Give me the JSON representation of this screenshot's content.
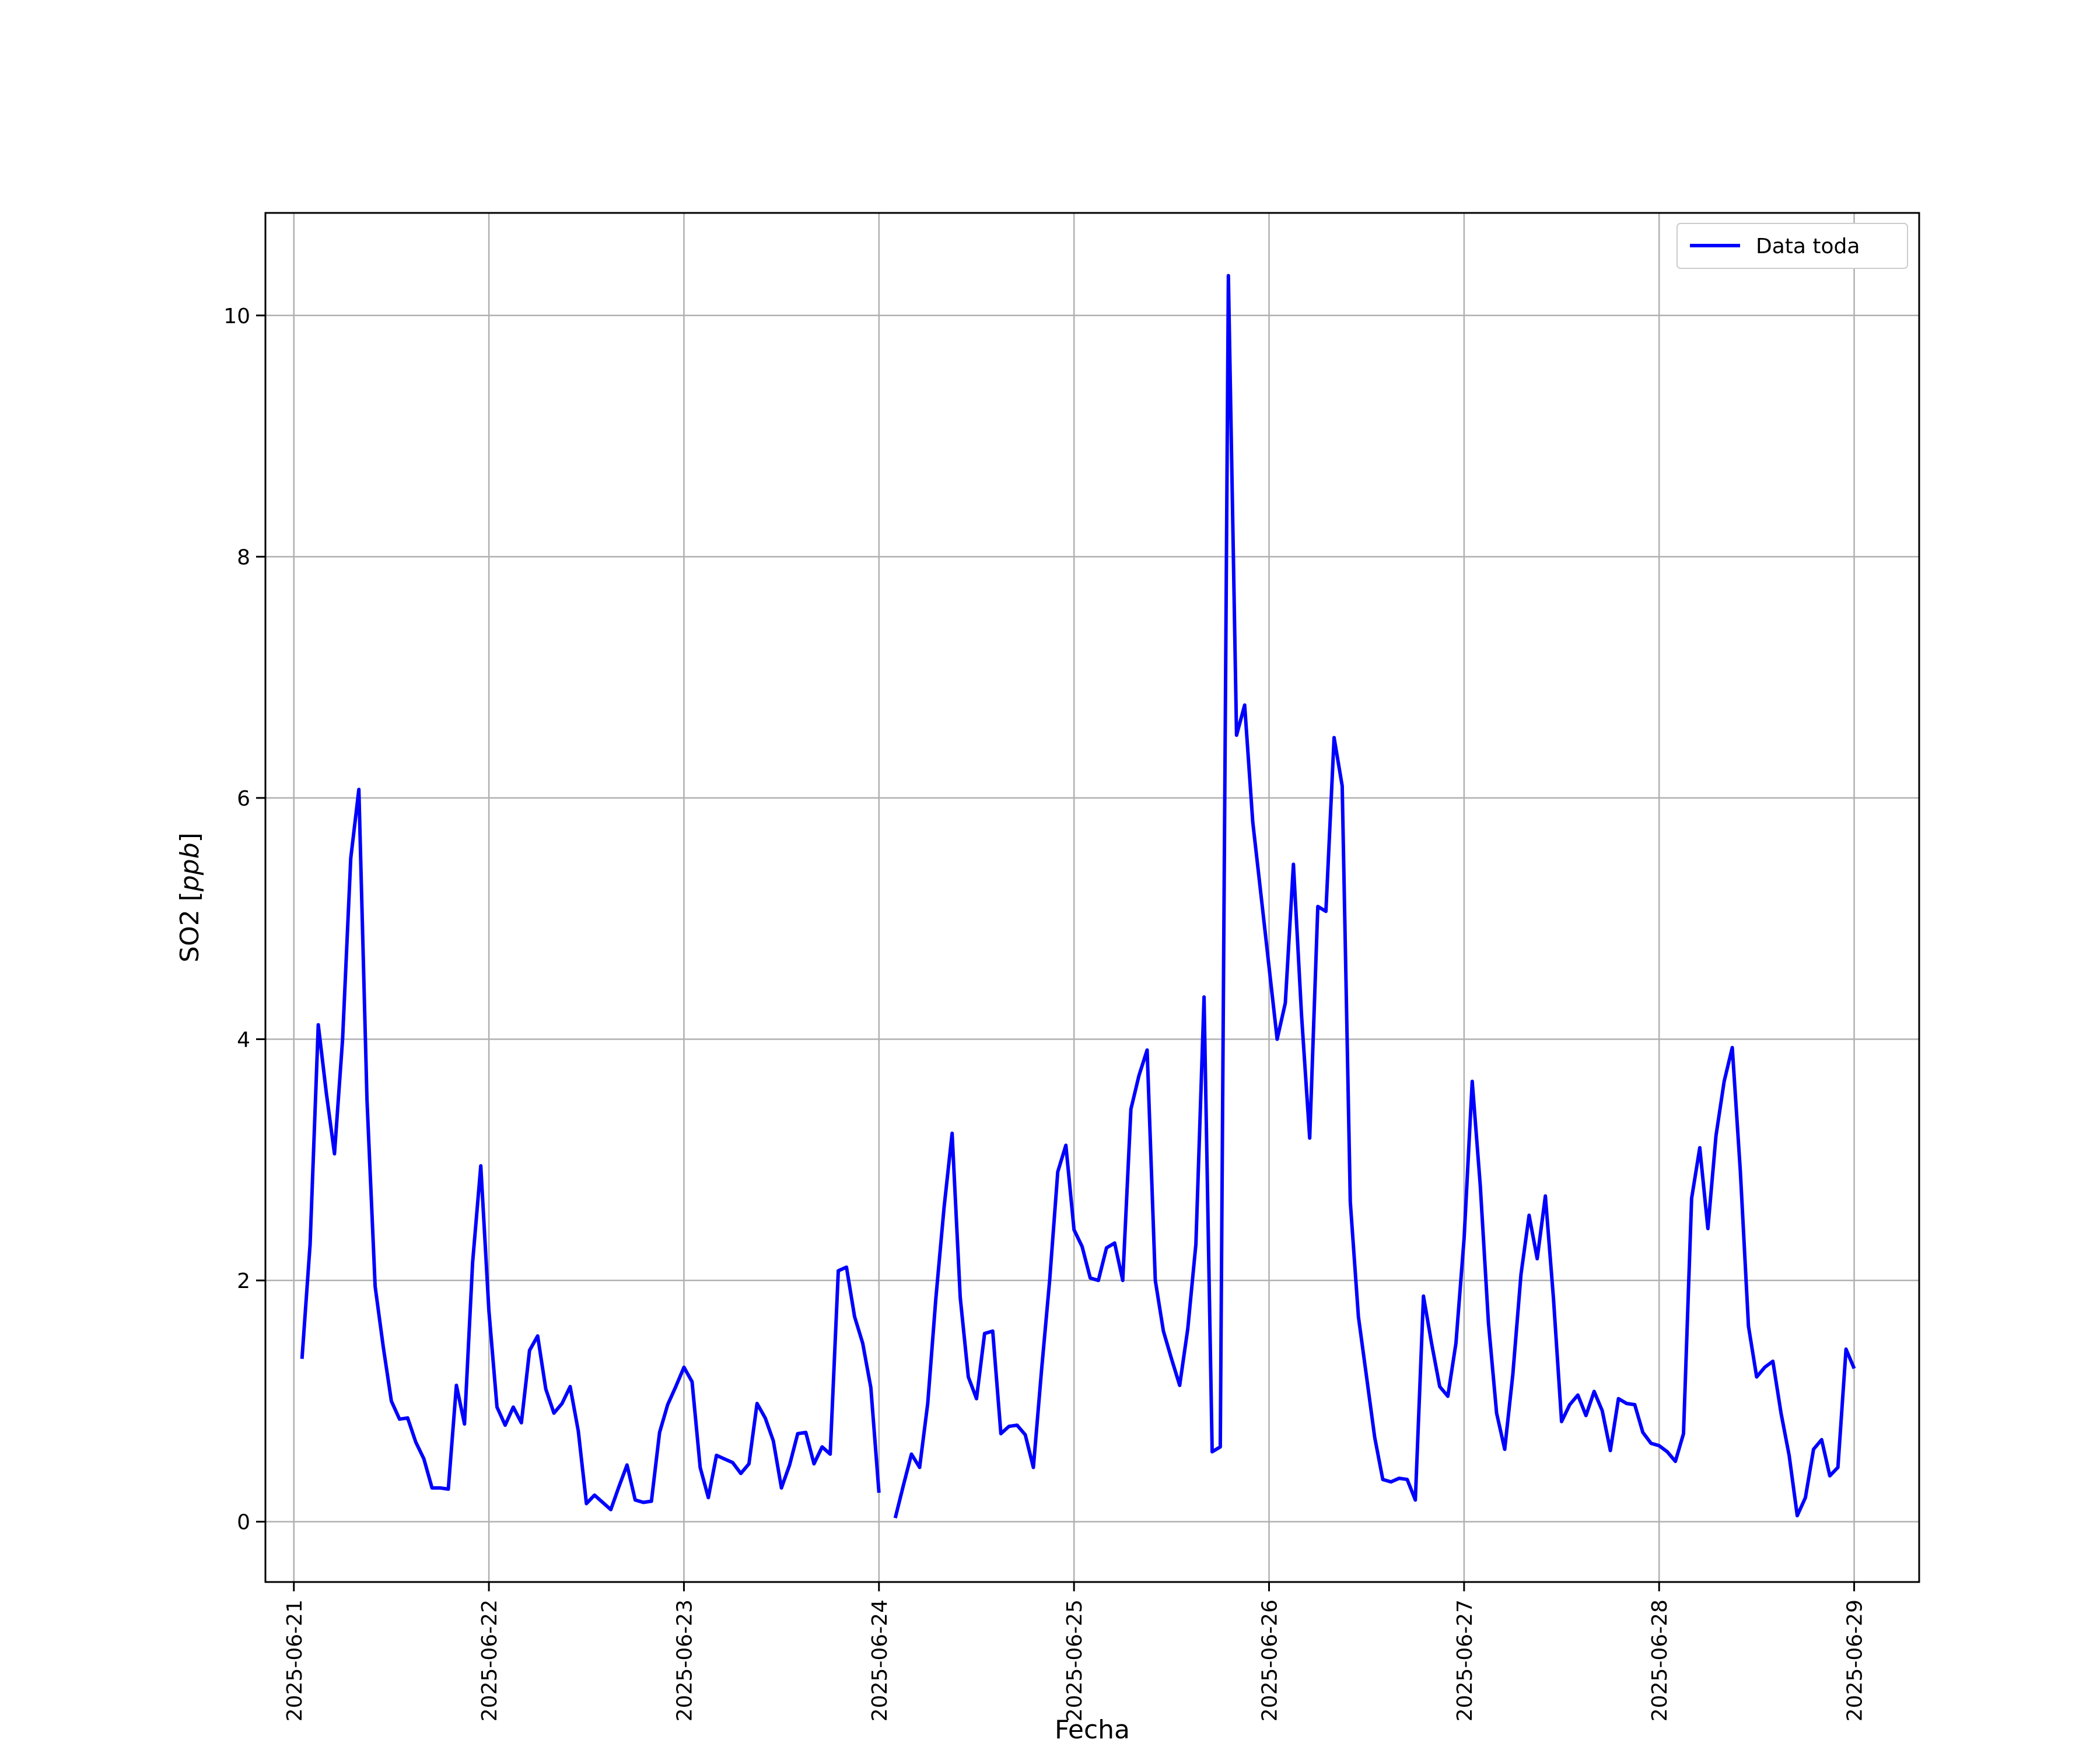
{
  "chart_data": {
    "type": "line",
    "xlabel": "Fecha",
    "ylabel_text": "SO2 [",
    "ylabel_unit": "ppb",
    "ylabel_close": "]",
    "ylim": [
      -0.5,
      10.85
    ],
    "xlim": [
      "2025-06-20 20:30",
      "2025-06-29 08:00"
    ],
    "grid": true,
    "legend_position": "top-right",
    "x_ticks": [
      {
        "value": "2025-06-21",
        "label": "2025-06-21"
      },
      {
        "value": "2025-06-22",
        "label": "2025-06-22"
      },
      {
        "value": "2025-06-23",
        "label": "2025-06-23"
      },
      {
        "value": "2025-06-24",
        "label": "2025-06-24"
      },
      {
        "value": "2025-06-25",
        "label": "2025-06-25"
      },
      {
        "value": "2025-06-26",
        "label": "2025-06-26"
      },
      {
        "value": "2025-06-27",
        "label": "2025-06-27"
      },
      {
        "value": "2025-06-28",
        "label": "2025-06-28"
      },
      {
        "value": "2025-06-29",
        "label": "2025-06-29"
      }
    ],
    "y_ticks": [
      {
        "value": 0,
        "label": "0"
      },
      {
        "value": 2,
        "label": "2"
      },
      {
        "value": 4,
        "label": "4"
      },
      {
        "value": 6,
        "label": "6"
      },
      {
        "value": 8,
        "label": "8"
      },
      {
        "value": 10,
        "label": "10"
      }
    ],
    "series": [
      {
        "name": "Data toda",
        "color": "#0000ff",
        "x": [
          "2025-06-21 01:00",
          "2025-06-21 02:00",
          "2025-06-21 03:00",
          "2025-06-21 04:00",
          "2025-06-21 05:00",
          "2025-06-21 06:00",
          "2025-06-21 07:00",
          "2025-06-21 08:00",
          "2025-06-21 09:00",
          "2025-06-21 10:00",
          "2025-06-21 11:00",
          "2025-06-21 12:00",
          "2025-06-21 13:00",
          "2025-06-21 14:00",
          "2025-06-21 15:00",
          "2025-06-21 16:00",
          "2025-06-21 17:00",
          "2025-06-21 18:00",
          "2025-06-21 19:00",
          "2025-06-21 20:00",
          "2025-06-21 21:00",
          "2025-06-21 22:00",
          "2025-06-21 23:00",
          "2025-06-22 00:00",
          "2025-06-22 01:00",
          "2025-06-22 02:00",
          "2025-06-22 03:00",
          "2025-06-22 04:00",
          "2025-06-22 05:00",
          "2025-06-22 06:00",
          "2025-06-22 07:00",
          "2025-06-22 08:00",
          "2025-06-22 09:00",
          "2025-06-22 10:00",
          "2025-06-22 11:00",
          "2025-06-22 12:00",
          "2025-06-22 13:00",
          "2025-06-22 14:00",
          "2025-06-22 15:00",
          "2025-06-22 16:00",
          "2025-06-22 17:00",
          "2025-06-22 18:00",
          "2025-06-22 19:00",
          "2025-06-22 20:00",
          "2025-06-22 21:00",
          "2025-06-22 22:00",
          "2025-06-22 23:00",
          "2025-06-23 00:00",
          "2025-06-23 01:00",
          "2025-06-23 02:00",
          "2025-06-23 03:00",
          "2025-06-23 04:00",
          "2025-06-23 05:00",
          "2025-06-23 06:00",
          "2025-06-23 07:00",
          "2025-06-23 08:00",
          "2025-06-23 09:00",
          "2025-06-23 10:00",
          "2025-06-23 11:00",
          "2025-06-23 12:00",
          "2025-06-23 13:00",
          "2025-06-23 14:00",
          "2025-06-23 15:00",
          "2025-06-23 16:00",
          "2025-06-23 17:00",
          "2025-06-23 18:00",
          "2025-06-23 19:00",
          "2025-06-23 20:00",
          "2025-06-23 21:00",
          "2025-06-23 22:00",
          "2025-06-23 23:00",
          "2025-06-24 00:00",
          null,
          "2025-06-24 02:00",
          "2025-06-24 03:00",
          "2025-06-24 04:00",
          "2025-06-24 05:00",
          "2025-06-24 06:00",
          "2025-06-24 07:00",
          "2025-06-24 08:00",
          "2025-06-24 09:00",
          "2025-06-24 10:00",
          "2025-06-24 11:00",
          "2025-06-24 12:00",
          "2025-06-24 13:00",
          "2025-06-24 14:00",
          "2025-06-24 15:00",
          "2025-06-24 16:00",
          "2025-06-24 17:00",
          "2025-06-24 18:00",
          "2025-06-24 19:00",
          "2025-06-24 20:00",
          "2025-06-24 21:00",
          "2025-06-24 22:00",
          "2025-06-24 23:00",
          "2025-06-25 00:00",
          "2025-06-25 01:00",
          "2025-06-25 02:00",
          "2025-06-25 03:00",
          "2025-06-25 04:00",
          "2025-06-25 05:00",
          "2025-06-25 06:00",
          "2025-06-25 07:00",
          "2025-06-25 08:00",
          "2025-06-25 09:00",
          "2025-06-25 10:00",
          "2025-06-25 11:00",
          "2025-06-25 12:00",
          "2025-06-25 13:00",
          "2025-06-25 14:00",
          "2025-06-25 15:00",
          "2025-06-25 16:00",
          "2025-06-25 17:00",
          "2025-06-25 18:00",
          "2025-06-25 19:00",
          "2025-06-25 20:00",
          "2025-06-25 21:00",
          "2025-06-25 22:00",
          "2025-06-25 23:00",
          "2025-06-26 00:00",
          "2025-06-26 01:00",
          "2025-06-26 02:00",
          "2025-06-26 03:00",
          "2025-06-26 04:00",
          "2025-06-26 05:00",
          "2025-06-26 06:00",
          "2025-06-26 07:00",
          "2025-06-26 08:00",
          "2025-06-26 09:00",
          "2025-06-26 10:00",
          "2025-06-26 11:00",
          "2025-06-26 12:00",
          "2025-06-26 13:00",
          "2025-06-26 14:00",
          "2025-06-26 15:00",
          "2025-06-26 16:00",
          "2025-06-26 17:00",
          "2025-06-26 18:00",
          "2025-06-26 19:00",
          "2025-06-26 20:00",
          "2025-06-26 21:00",
          "2025-06-26 22:00",
          "2025-06-26 23:00",
          "2025-06-27 00:00",
          "2025-06-27 01:00",
          "2025-06-27 02:00",
          "2025-06-27 03:00",
          "2025-06-27 04:00",
          "2025-06-27 05:00",
          "2025-06-27 06:00",
          "2025-06-27 07:00",
          "2025-06-27 08:00",
          "2025-06-27 09:00",
          "2025-06-27 10:00",
          "2025-06-27 11:00",
          "2025-06-27 12:00",
          "2025-06-27 13:00",
          "2025-06-27 14:00",
          "2025-06-27 15:00",
          "2025-06-27 16:00",
          "2025-06-27 17:00",
          "2025-06-27 18:00",
          "2025-06-27 19:00",
          "2025-06-27 20:00",
          "2025-06-27 21:00",
          "2025-06-27 22:00",
          "2025-06-27 23:00",
          "2025-06-28 00:00",
          "2025-06-28 01:00",
          "2025-06-28 02:00",
          "2025-06-28 03:00",
          "2025-06-28 04:00",
          "2025-06-28 05:00",
          "2025-06-28 06:00",
          "2025-06-28 07:00",
          "2025-06-28 08:00",
          "2025-06-28 09:00",
          "2025-06-28 10:00",
          "2025-06-28 11:00",
          "2025-06-28 12:00",
          "2025-06-28 13:00",
          "2025-06-28 14:00",
          "2025-06-28 15:00",
          "2025-06-28 16:00",
          "2025-06-28 17:00",
          "2025-06-28 18:00",
          "2025-06-28 19:00",
          "2025-06-28 20:00",
          "2025-06-28 21:00",
          "2025-06-28 22:00",
          "2025-06-28 23:00",
          "2025-06-29 00:00"
        ],
        "y": [
          1.35,
          2.3,
          4.12,
          3.55,
          3.05,
          4.0,
          5.5,
          6.07,
          3.5,
          1.95,
          1.45,
          1.0,
          0.85,
          0.86,
          0.66,
          0.52,
          0.28,
          0.28,
          0.27,
          1.13,
          0.81,
          2.15,
          2.95,
          1.75,
          0.95,
          0.8,
          0.95,
          0.82,
          1.42,
          1.54,
          1.1,
          0.9,
          0.98,
          1.12,
          0.75,
          0.15,
          0.22,
          0.16,
          0.1,
          0.29,
          0.47,
          0.18,
          0.16,
          0.17,
          0.74,
          0.97,
          1.12,
          1.28,
          1.16,
          0.45,
          0.2,
          0.55,
          0.52,
          0.49,
          0.4,
          0.48,
          0.98,
          0.86,
          0.67,
          0.28,
          0.47,
          0.73,
          0.74,
          0.48,
          0.62,
          0.56,
          2.08,
          2.11,
          1.7,
          1.48,
          1.11,
          0.24,
          null,
          0.03,
          0.3,
          0.56,
          0.45,
          0.98,
          1.85,
          2.6,
          3.22,
          1.86,
          1.2,
          1.02,
          1.56,
          1.58,
          0.73,
          0.79,
          0.8,
          0.72,
          0.45,
          1.25,
          2.0,
          2.9,
          3.12,
          2.42,
          2.28,
          2.02,
          2.0,
          2.27,
          2.31,
          2.0,
          3.42,
          3.7,
          3.91,
          2.0,
          1.58,
          1.35,
          1.13,
          1.6,
          2.3,
          4.35,
          0.58,
          0.62,
          10.33,
          6.52,
          6.77,
          5.8,
          5.2,
          4.6,
          4.0,
          4.3,
          5.45,
          4.2,
          3.18,
          5.1,
          5.06,
          6.5,
          6.1,
          2.65,
          1.7,
          1.2,
          0.7,
          0.35,
          0.33,
          0.36,
          0.35,
          0.18,
          1.87,
          1.48,
          1.12,
          1.04,
          1.48,
          2.35,
          3.65,
          2.78,
          1.65,
          0.9,
          0.6,
          1.22,
          2.05,
          2.54,
          2.18,
          2.7,
          1.85,
          0.83,
          0.97,
          1.05,
          0.88,
          1.08,
          0.92,
          0.59,
          1.02,
          0.98,
          0.97,
          0.74,
          0.65,
          0.63,
          0.58,
          0.5,
          0.73,
          2.68,
          3.1,
          2.43,
          3.2,
          3.65,
          3.93,
          2.9,
          1.62,
          1.2,
          1.28,
          1.33,
          0.9,
          0.55,
          0.05,
          0.2,
          0.6,
          0.68,
          0.38,
          0.45,
          1.43,
          1.27
        ]
      }
    ]
  }
}
